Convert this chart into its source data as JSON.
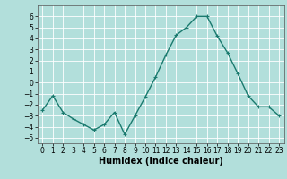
{
  "x": [
    0,
    1,
    2,
    3,
    4,
    5,
    6,
    7,
    8,
    9,
    10,
    11,
    12,
    13,
    14,
    15,
    16,
    17,
    18,
    19,
    20,
    21,
    22,
    23
  ],
  "y": [
    -2.5,
    -1.2,
    -2.7,
    -3.3,
    -3.8,
    -4.3,
    -3.8,
    -2.7,
    -4.7,
    -3.0,
    -1.3,
    0.5,
    2.5,
    4.3,
    5.0,
    6.0,
    6.0,
    4.2,
    2.7,
    0.8,
    -1.2,
    -2.2,
    -2.2,
    -3.0
  ],
  "line_color": "#1a7a6e",
  "marker": "+",
  "marker_size": 3,
  "linewidth": 1.0,
  "xlabel": "Humidex (Indice chaleur)",
  "ylim": [
    -5.5,
    7.0
  ],
  "xlim": [
    -0.5,
    23.5
  ],
  "yticks": [
    -5,
    -4,
    -3,
    -2,
    -1,
    0,
    1,
    2,
    3,
    4,
    5,
    6
  ],
  "xticks": [
    0,
    1,
    2,
    3,
    4,
    5,
    6,
    7,
    8,
    9,
    10,
    11,
    12,
    13,
    14,
    15,
    16,
    17,
    18,
    19,
    20,
    21,
    22,
    23
  ],
  "bg_color": "#b2dfdb",
  "grid_color": "#ffffff",
  "tick_fontsize": 5.5,
  "xlabel_fontsize": 7.0
}
